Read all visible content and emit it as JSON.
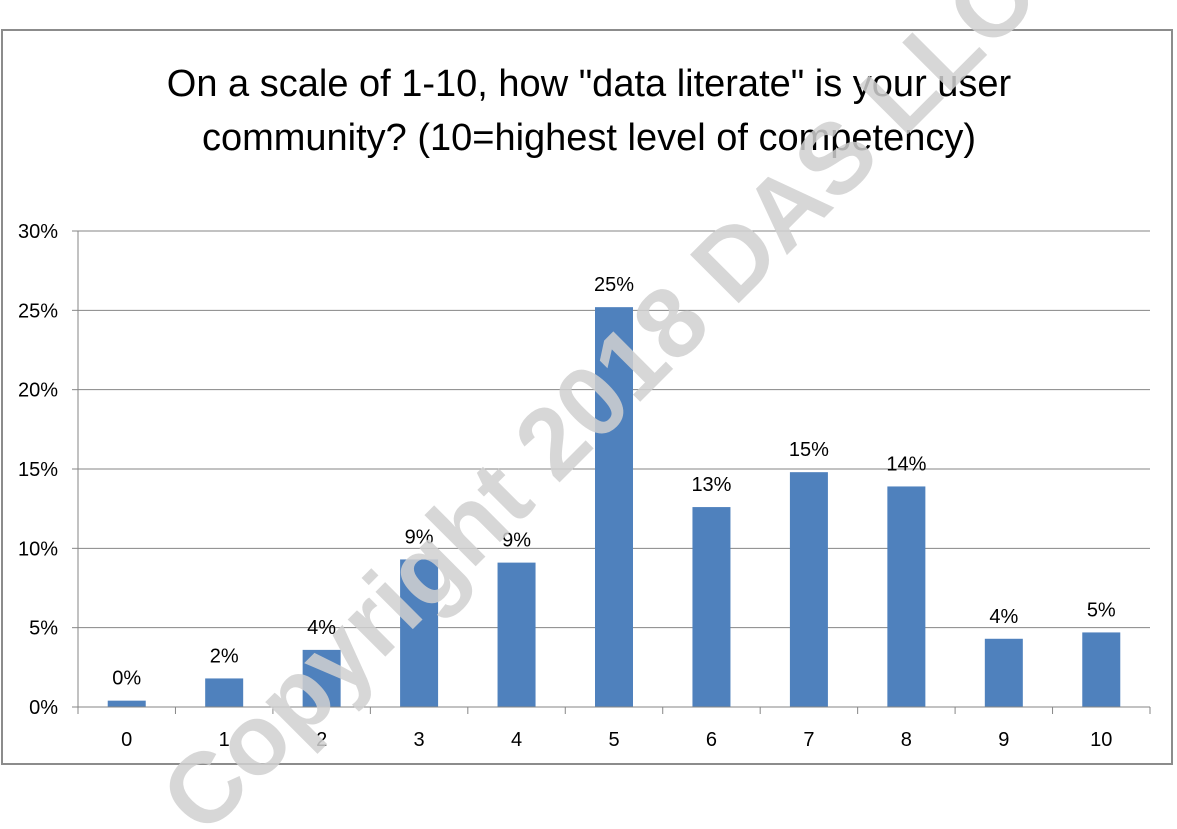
{
  "chart_data": {
    "type": "bar",
    "title_lines": [
      "On a scale of 1-10, how \"data literate\" is your user",
      "community? (10=highest level of competency)"
    ],
    "categories": [
      "0",
      "1",
      "2",
      "3",
      "4",
      "5",
      "6",
      "7",
      "8",
      "9",
      "10"
    ],
    "values": [
      0.4,
      1.8,
      3.6,
      9.3,
      9.1,
      25.2,
      12.6,
      14.8,
      13.9,
      4.3,
      4.7
    ],
    "data_labels": [
      "0%",
      "2%",
      "4%",
      "9%",
      "9%",
      "25%",
      "13%",
      "15%",
      "14%",
      "4%",
      "5%"
    ],
    "ylim": [
      0,
      30
    ],
    "yticks": [
      0,
      5,
      10,
      15,
      20,
      25,
      30
    ],
    "ytick_labels": [
      "0%",
      "5%",
      "10%",
      "15%",
      "20%",
      "25%",
      "30%"
    ],
    "grid": true,
    "legend": "none",
    "colors": {
      "bar": "#4f81bd",
      "grid": "#868686",
      "axis": "#868686"
    },
    "watermark": "Copyright 2018 DAS LLC"
  }
}
